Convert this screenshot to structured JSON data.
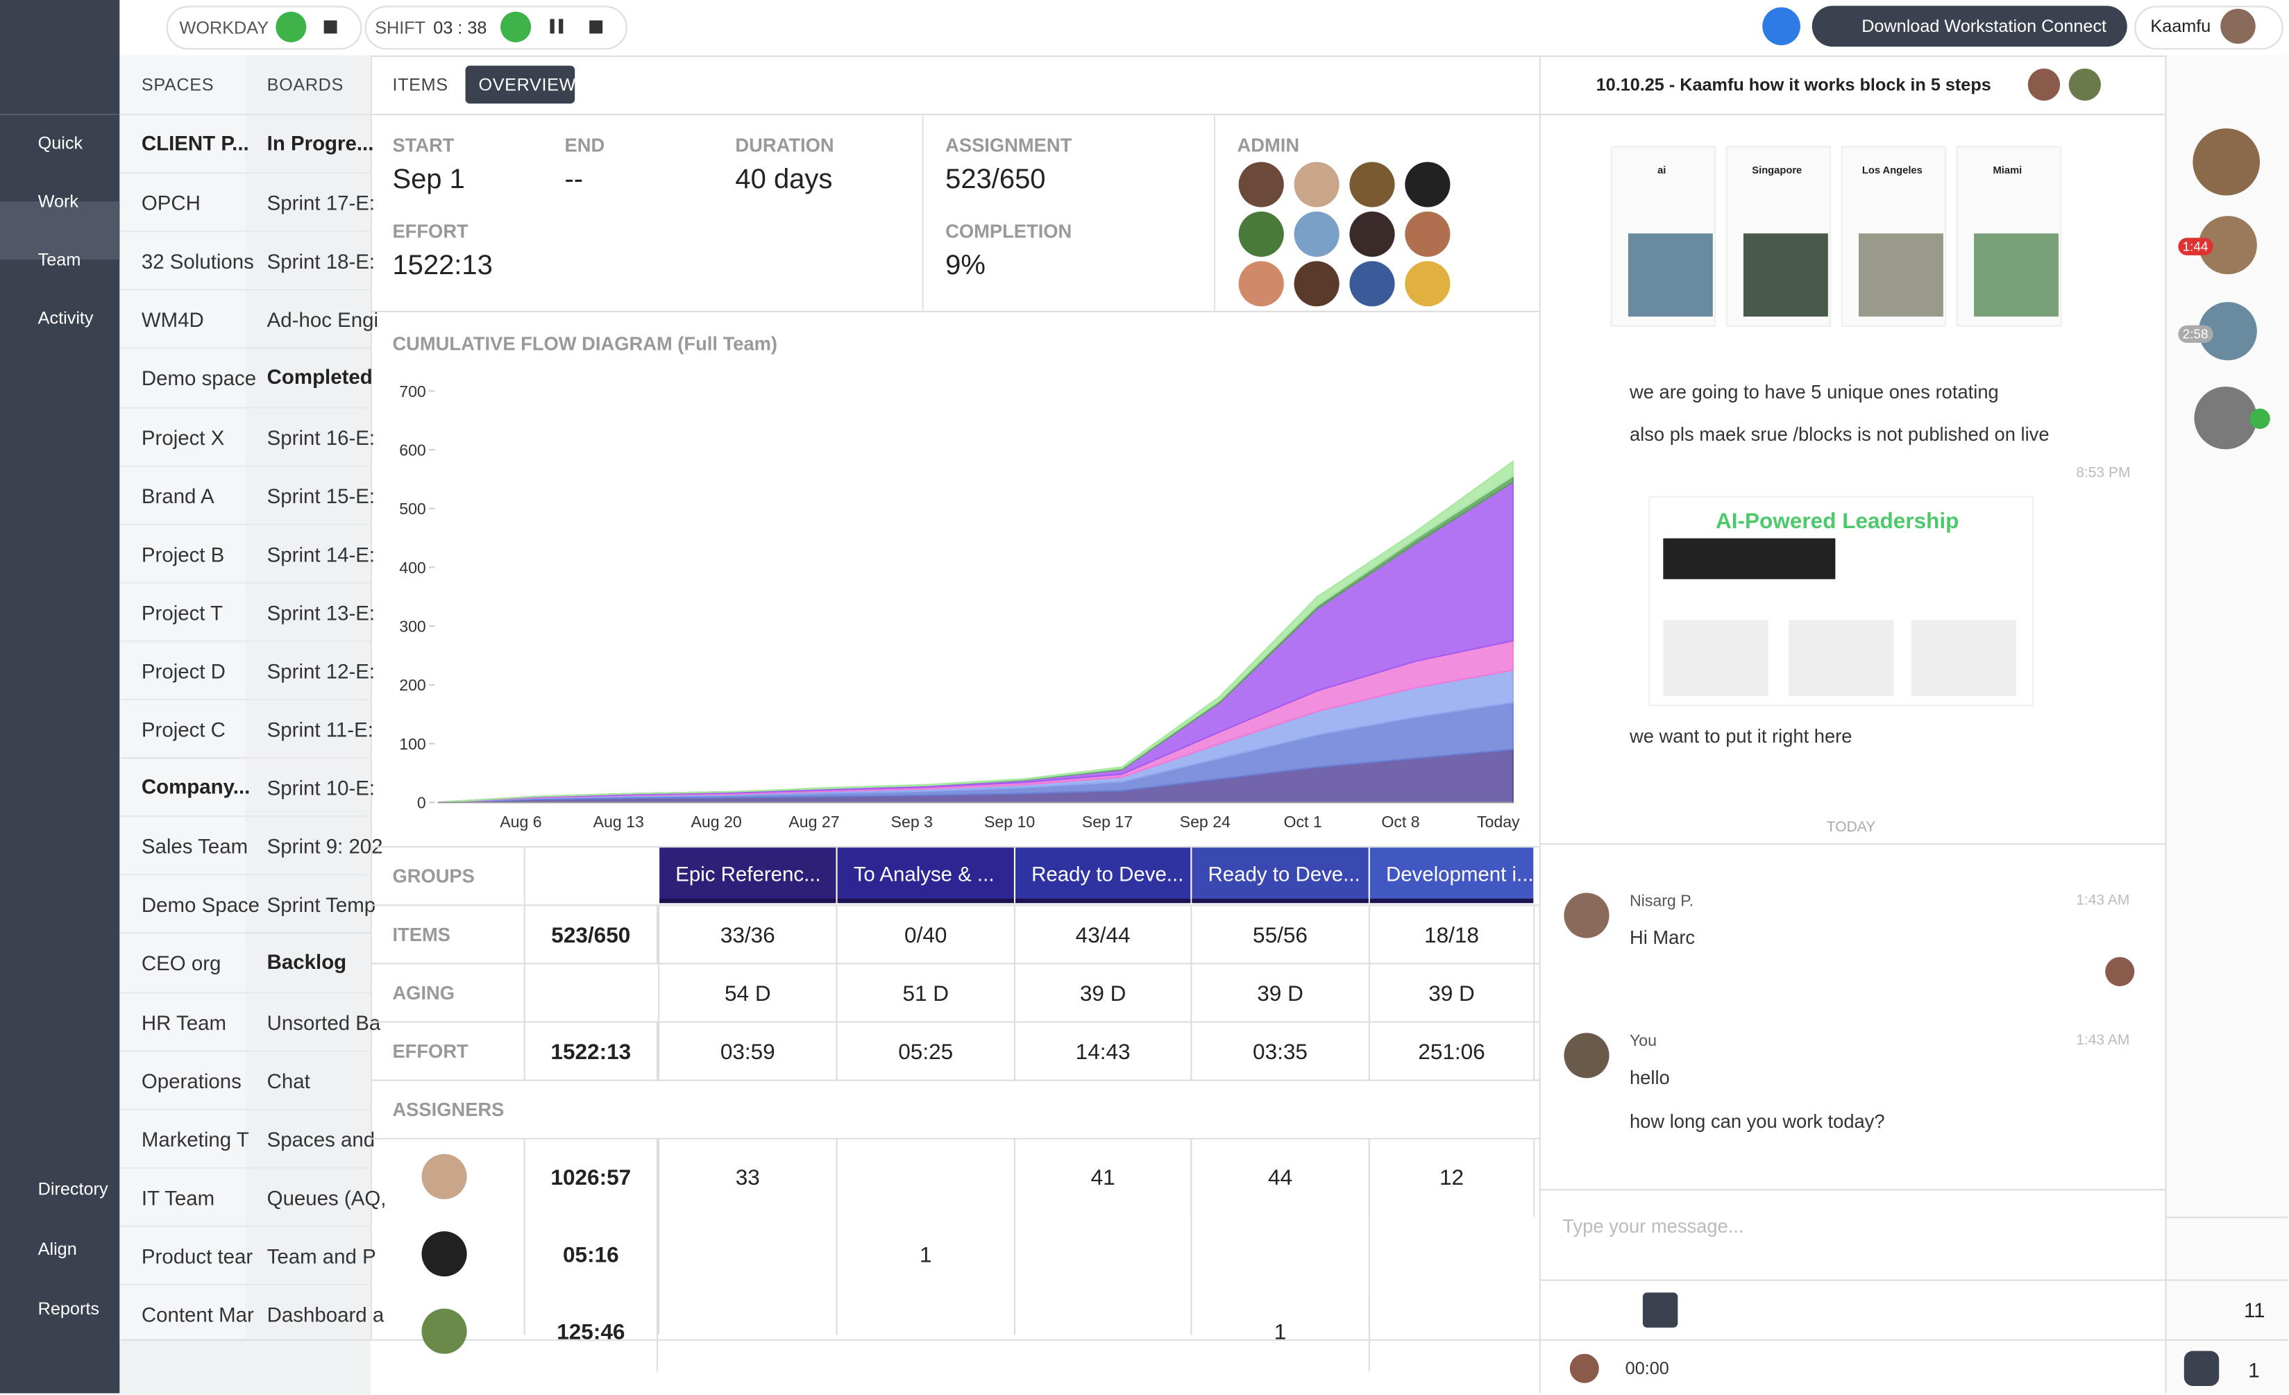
{
  "topbar": {
    "workday": "WORKDAY",
    "shift": "SHIFT",
    "shift_time": "03 : 38",
    "download": "Download Workstation Connect",
    "user": "Kaamfu"
  },
  "nav": {
    "top": [
      "Quick",
      "Work",
      "Team",
      "Activity"
    ],
    "bottom": [
      "Directory",
      "Align",
      "Reports"
    ]
  },
  "spaces": {
    "header": "SPACES",
    "groups": [
      {
        "title": "CLIENT P...",
        "items": [
          "OPCH",
          "32 Solutions",
          "WM4D",
          "Demo space",
          "Project X",
          "Brand A",
          "Project B",
          "Project T",
          "Project D",
          "Project C"
        ]
      },
      {
        "title": "Company...",
        "items": [
          "Sales Team",
          "Demo Space",
          "CEO org",
          "HR Team",
          "Operations",
          "Marketing T",
          "IT Team",
          "Product tear",
          "Content Mar"
        ]
      }
    ]
  },
  "boards": {
    "header": "BOARDS",
    "groups": [
      {
        "title": "In Progre...",
        "items": [
          "Sprint 17-E:",
          "Sprint 18-E:",
          "Ad-hoc Engi"
        ]
      },
      {
        "title": "Completed",
        "items": [
          "Sprint 16-E:",
          "Sprint 15-E:",
          "Sprint 14-E:",
          "Sprint 13-E:",
          "Sprint 12-E:",
          "Sprint 11-E:",
          "Sprint 10-E:",
          "Sprint 9: 202",
          "Sprint Temp"
        ]
      },
      {
        "title": "Backlog",
        "items": [
          "Unsorted Ba",
          "Chat",
          "Spaces and",
          "Queues (AQ,",
          "Team and P",
          "Dashboard a"
        ]
      }
    ]
  },
  "overview": {
    "tabs": [
      "ITEMS",
      "OVERVIEW"
    ],
    "stats": [
      {
        "label": "START",
        "value": "Sep 1"
      },
      {
        "label": "END",
        "value": "--"
      },
      {
        "label": "DURATION",
        "value": "40 days"
      },
      {
        "label": "EFFORT",
        "value": "1522:13"
      },
      {
        "label": "ASSIGNMENT",
        "value": "523/650"
      },
      {
        "label": "COMPLETION",
        "value": "9%"
      }
    ],
    "admin": "ADMIN"
  },
  "chart_data": {
    "type": "area",
    "title": "CUMULATIVE FLOW DIAGRAM (Full Team)",
    "stacked": true,
    "categories": [
      null,
      "Aug 6",
      "Aug 13",
      "Aug 20",
      "Aug 27",
      "Sep 3",
      "Sep 10",
      "Sep 17",
      "Sep 24",
      "Oct 1",
      "Oct 8",
      "Today"
    ],
    "ylim": [
      0,
      700
    ],
    "yticks": [
      0,
      100,
      200,
      300,
      400,
      500,
      600,
      700
    ],
    "series": [
      {
        "color": "#5b4a9e",
        "values": [
          0,
          5,
          7,
          8,
          10,
          12,
          15,
          20,
          40,
          60,
          75,
          90
        ]
      },
      {
        "color": "#6a7fd6",
        "values": [
          0,
          2,
          3,
          4,
          6,
          7,
          10,
          15,
          35,
          55,
          70,
          80
        ]
      },
      {
        "color": "#8fa8f0",
        "values": [
          0,
          1,
          2,
          2,
          3,
          4,
          5,
          8,
          25,
          40,
          50,
          55
        ]
      },
      {
        "color": "#f07ad8",
        "values": [
          0,
          1,
          1,
          2,
          2,
          3,
          4,
          5,
          20,
          35,
          45,
          50
        ]
      },
      {
        "color": "#a45cf0",
        "values": [
          0,
          1,
          2,
          2,
          3,
          3,
          4,
          8,
          50,
          140,
          200,
          270
        ]
      },
      {
        "color": "#5aa05a",
        "values": [
          0,
          0,
          0,
          0,
          0,
          0,
          1,
          2,
          3,
          5,
          8,
          10
        ]
      },
      {
        "color": "#a8e8a0",
        "values": [
          0,
          0,
          0,
          0,
          1,
          1,
          1,
          2,
          7,
          15,
          12,
          25
        ]
      }
    ]
  },
  "groups_table": {
    "row_labels": [
      "GROUPS",
      "ITEMS",
      "AGING",
      "EFFORT"
    ],
    "groups": [
      {
        "name": "Epic Referenc...",
        "color": "#2e1f78"
      },
      {
        "name": "To Analyse & ...",
        "color": "#2c2592"
      },
      {
        "name": "Ready to Deve...",
        "color": "#2f33a2"
      },
      {
        "name": "Ready to Deve...",
        "color": "#3a48b2"
      },
      {
        "name": "Development i...",
        "color": "#4157c2"
      }
    ],
    "items_total": "523/650",
    "items": [
      "33/36",
      "0/40",
      "43/44",
      "55/56",
      "18/18"
    ],
    "aging": [
      "54 D",
      "51 D",
      "39 D",
      "39 D",
      "39 D"
    ],
    "effort_total": "1522:13",
    "effort": [
      "03:59",
      "05:25",
      "14:43",
      "03:35",
      "251:06"
    ]
  },
  "assigners": {
    "title": "ASSIGNERS",
    "rows": [
      {
        "total": "1026:57",
        "cells": [
          "33",
          null,
          "41",
          "44",
          "12"
        ]
      },
      {
        "total": "05:16",
        "cells": [
          null,
          "1",
          null,
          null,
          null
        ]
      },
      {
        "total": "125:46",
        "cells": [
          null,
          null,
          null,
          "1",
          null
        ]
      }
    ]
  },
  "chat": {
    "title": "10.10.25 - Kaamfu how it works block in 5 steps",
    "cities": [
      "ai",
      "Singapore",
      "Los Angeles",
      "Miami"
    ],
    "lines": [
      "we are going to have 5 unique ones rotating",
      "also pls maek srue /blocks is not published on live"
    ],
    "time1": "8:53 PM",
    "promo": "AI-Powered Leadership",
    "line3": "we want to put it right here",
    "day": "TODAY",
    "messages": [
      {
        "author": "Nisarg P.",
        "time": "1:43 AM",
        "texts": [
          "Hi Marc"
        ]
      },
      {
        "author": "You",
        "time": "1:43 AM",
        "texts": [
          "hello",
          "how long can you work today?"
        ]
      }
    ],
    "placeholder": "Type your message...",
    "timer": "00:00"
  },
  "rail": {
    "badges": [
      "1:44",
      "2:58"
    ],
    "flags": "11",
    "chats": "1"
  }
}
